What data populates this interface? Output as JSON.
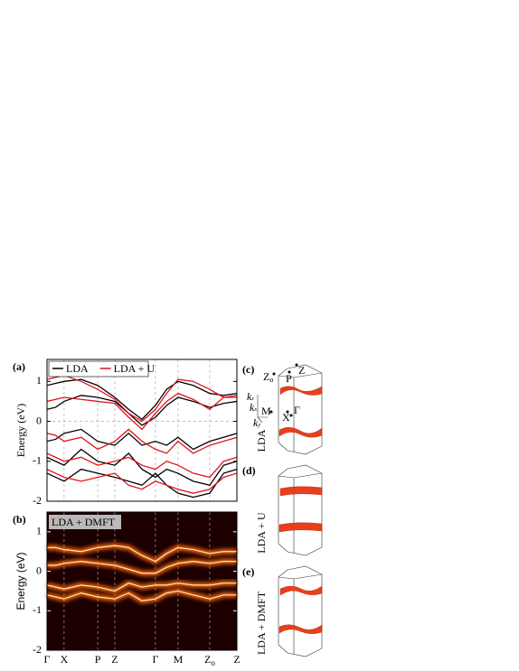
{
  "chart_data": [
    {
      "type": "bands",
      "panel_label": "(a)",
      "ylabel": "Energy (eV)",
      "ylim": [
        -2,
        1.55
      ],
      "yticks": [
        -2,
        -1,
        0,
        1
      ],
      "xlim": [
        0,
        1
      ],
      "vlines": [
        0.09,
        0.267,
        0.357,
        0.571,
        0.69,
        0.857
      ],
      "hline": 0,
      "legend": "top-left",
      "x": [
        0,
        0.045,
        0.09,
        0.18,
        0.267,
        0.357,
        0.43,
        0.5,
        0.571,
        0.63,
        0.69,
        0.77,
        0.857,
        0.93,
        1.0
      ],
      "series": [
        {
          "name": "LDA",
          "color": "#000000",
          "bands": [
            [
              0.9,
              0.95,
              1.0,
              1.05,
              0.9,
              0.6,
              0.3,
              0.05,
              0.4,
              0.8,
              1.0,
              0.9,
              0.7,
              0.65,
              0.7
            ],
            [
              0.3,
              0.35,
              0.5,
              0.65,
              0.6,
              0.5,
              0.2,
              -0.1,
              0.1,
              0.4,
              0.6,
              0.5,
              0.35,
              0.45,
              0.5
            ],
            [
              -0.5,
              -0.45,
              -0.3,
              -0.2,
              -0.5,
              -0.6,
              -0.3,
              -0.6,
              -0.5,
              -0.6,
              -0.4,
              -0.7,
              -0.5,
              -0.4,
              -0.3
            ],
            [
              -0.9,
              -1.0,
              -1.1,
              -0.7,
              -1.0,
              -1.1,
              -0.8,
              -1.2,
              -1.4,
              -1.2,
              -1.3,
              -1.5,
              -1.6,
              -1.1,
              -1.0
            ],
            [
              -1.3,
              -1.4,
              -1.5,
              -1.2,
              -1.3,
              -1.4,
              -1.5,
              -1.6,
              -1.3,
              -1.6,
              -1.8,
              -1.9,
              -1.8,
              -1.3,
              -1.2
            ]
          ]
        },
        {
          "name": "LDA + U",
          "color": "#e0141e",
          "bands": [
            [
              1.05,
              1.1,
              1.15,
              1.0,
              0.8,
              0.55,
              0.2,
              0.0,
              0.3,
              0.7,
              1.05,
              1.0,
              0.8,
              0.6,
              0.65
            ],
            [
              0.5,
              0.55,
              0.6,
              0.55,
              0.5,
              0.45,
              0.1,
              -0.2,
              0.2,
              0.5,
              0.7,
              0.55,
              0.3,
              0.6,
              0.6
            ],
            [
              -0.3,
              -0.35,
              -0.5,
              -0.4,
              -0.7,
              -0.5,
              -0.2,
              -0.5,
              -0.7,
              -0.8,
              -0.5,
              -0.8,
              -0.6,
              -0.5,
              -0.4
            ],
            [
              -0.8,
              -0.9,
              -1.0,
              -0.9,
              -1.1,
              -1.0,
              -0.9,
              -1.1,
              -1.2,
              -1.0,
              -1.1,
              -1.3,
              -1.4,
              -1.0,
              -0.9
            ],
            [
              -1.2,
              -1.3,
              -1.4,
              -1.5,
              -1.4,
              -1.3,
              -1.6,
              -1.7,
              -1.5,
              -1.6,
              -1.7,
              -1.8,
              -1.7,
              -1.4,
              -1.3
            ]
          ]
        }
      ]
    },
    {
      "type": "spectral",
      "panel_label": "(b)",
      "ylabel": "Energy (eV)",
      "ylim": [
        -2,
        1.5
      ],
      "yticks": [
        -2,
        -1,
        0,
        1
      ],
      "xlim": [
        0,
        1
      ],
      "background": "#1c0000",
      "title": "LDA + DMFT",
      "xticks": [
        {
          "value": 0,
          "label": "Γ"
        },
        {
          "value": 0.09,
          "label": "X"
        },
        {
          "value": 0.267,
          "label": "P"
        },
        {
          "value": 0.357,
          "label": "Z"
        },
        {
          "value": 0.571,
          "label": "Γ"
        },
        {
          "value": 0.69,
          "label": "M"
        },
        {
          "value": 0.857,
          "label": "Zo"
        },
        {
          "value": 1.0,
          "label": "Z"
        }
      ],
      "x": [
        0,
        0.045,
        0.09,
        0.18,
        0.267,
        0.357,
        0.43,
        0.5,
        0.571,
        0.63,
        0.69,
        0.77,
        0.857,
        0.93,
        1.0
      ],
      "series": [
        {
          "color": "#ff6a10",
          "bands": [
            [
              0.6,
              0.6,
              0.55,
              0.5,
              0.6,
              0.65,
              0.6,
              0.4,
              0.25,
              0.45,
              0.6,
              0.55,
              0.45,
              0.5,
              0.5
            ],
            [
              0.15,
              0.15,
              0.2,
              0.25,
              0.2,
              0.15,
              0.05,
              -0.05,
              -0.05,
              0.1,
              0.2,
              0.25,
              0.2,
              0.25,
              0.25
            ],
            [
              -0.35,
              -0.4,
              -0.45,
              -0.35,
              -0.4,
              -0.5,
              -0.3,
              -0.4,
              -0.35,
              -0.35,
              -0.3,
              -0.35,
              -0.35,
              -0.3,
              -0.3
            ],
            [
              -0.6,
              -0.65,
              -0.7,
              -0.55,
              -0.65,
              -0.7,
              -0.55,
              -0.75,
              -0.7,
              -0.55,
              -0.5,
              -0.6,
              -0.7,
              -0.6,
              -0.6
            ]
          ]
        }
      ]
    }
  ],
  "fermi_surfaces": {
    "c": {
      "panel_label": "(c)",
      "method": "LDA",
      "points": {
        "zo": "Z",
        "zo_sub": "o",
        "z": "Z",
        "p": "P",
        "m": "M",
        "x": "X",
        "gamma": "Γ"
      },
      "axes": {
        "kz": "k",
        "kz_sub": "z",
        "kx": "k",
        "kx_sub": "x",
        "ky": "k",
        "ky_sub": "y"
      }
    },
    "d": {
      "panel_label": "(d)",
      "method": "LDA + U"
    },
    "e": {
      "panel_label": "(e)",
      "method": "LDA + DMFT"
    }
  }
}
